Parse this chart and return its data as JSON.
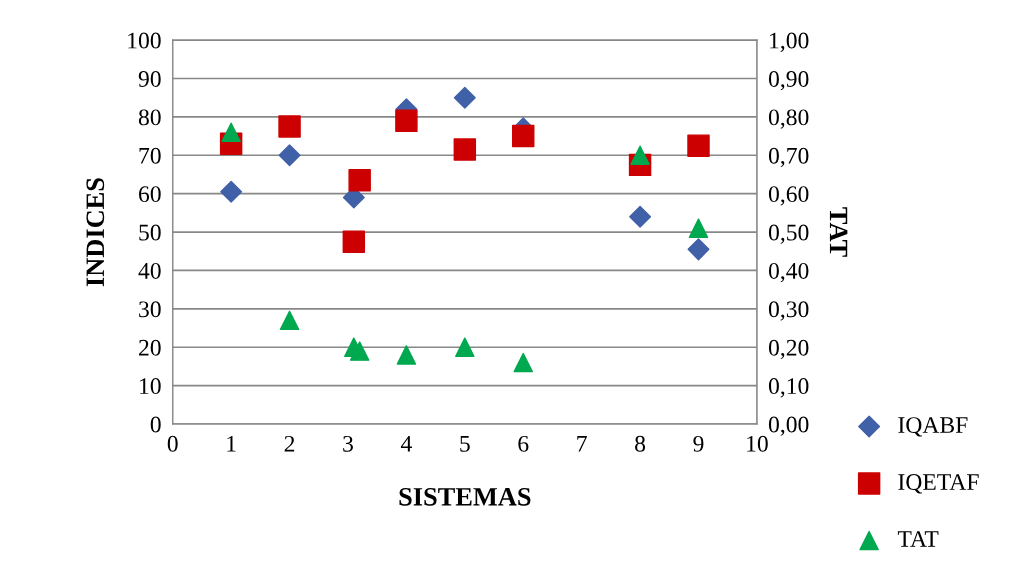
{
  "chart_data": {
    "type": "scatter",
    "xlabel": "SISTEMAS",
    "ylabel": "INDICES",
    "y2label": "TAT",
    "xlim": [
      0,
      10
    ],
    "xticks": [
      0,
      1,
      2,
      3,
      4,
      5,
      6,
      7,
      8,
      9,
      10
    ],
    "ylim": [
      0,
      100
    ],
    "yticks": [
      0,
      10,
      20,
      30,
      40,
      50,
      60,
      70,
      80,
      90,
      100
    ],
    "y2lim": [
      0,
      1
    ],
    "y2ticks": [
      {
        "value": 0,
        "label": "0,00"
      },
      {
        "value": 0.1,
        "label": "0,10"
      },
      {
        "value": 0.2,
        "label": "0,20"
      },
      {
        "value": 0.3,
        "label": "0,30"
      },
      {
        "value": 0.4,
        "label": "0,40"
      },
      {
        "value": 0.5,
        "label": "0,50"
      },
      {
        "value": 0.6,
        "label": "0,60"
      },
      {
        "value": 0.7,
        "label": "0,70"
      },
      {
        "value": 0.8,
        "label": "0,80"
      },
      {
        "value": 0.9,
        "label": "0,90"
      },
      {
        "value": 1,
        "label": "1,00"
      }
    ],
    "grid": "y",
    "legend": "bottom right",
    "series": [
      {
        "name": "IQABF",
        "color": "#4060a8",
        "marker": "diamond",
        "x": [
          1,
          2,
          3.1,
          4,
          5,
          6,
          8,
          9
        ],
        "values": [
          60.5,
          70,
          59,
          82,
          85,
          77,
          54,
          45.5
        ]
      },
      {
        "name": "IQETAF",
        "color": "#cc0000",
        "marker": "square",
        "x": [
          1,
          2,
          3.1,
          3.2,
          4,
          5,
          6,
          8,
          9
        ],
        "values": [
          73,
          77.5,
          47.5,
          63.5,
          79,
          71.5,
          75,
          67.5,
          72.5
        ]
      },
      {
        "name": "TAT",
        "color": "#00a850",
        "marker": "triangle",
        "axis": "y2",
        "x": [
          1,
          2,
          3.1,
          3.2,
          4,
          5,
          6,
          8,
          9
        ],
        "values": [
          0.76,
          0.27,
          0.2,
          0.19,
          0.18,
          0.2,
          0.16,
          0.7,
          0.51
        ]
      }
    ]
  }
}
